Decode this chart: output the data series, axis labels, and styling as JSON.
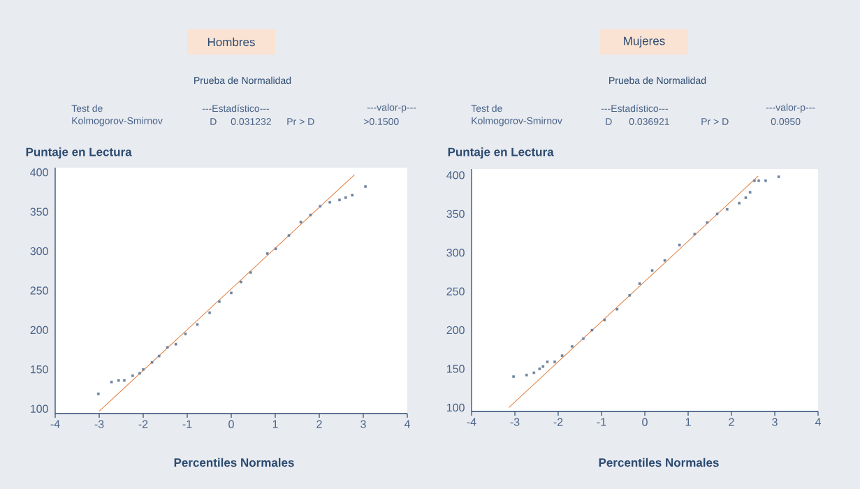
{
  "chart_data": [
    {
      "type": "scatter",
      "title": "Hombres",
      "subtitle": "Prueba de Normalidad",
      "xlabel": "Percentiles Normales",
      "ylabel": "Puntaje en Lectura",
      "annotations": [
        "Test de",
        "Kolmogorov-Smirnov",
        "---Estadístico---",
        "D",
        "0.031232",
        "Pr  >  D",
        "---valor-p---",
        ">0.1500"
      ],
      "xlim": [
        -4,
        4
      ],
      "ylim": [
        94,
        406
      ],
      "xticks": [
        -4,
        -3,
        -2,
        -1,
        0,
        1,
        2,
        3,
        4
      ],
      "yticks": [
        100,
        150,
        200,
        250,
        300,
        350,
        400
      ],
      "series": [
        {
          "color": "#6d83a0",
          "marker": "square",
          "x": [
            -3.02,
            -2.72,
            -2.56,
            -2.43,
            -2.24,
            -2.08,
            -2.0,
            -1.8,
            -1.64,
            -1.45,
            -1.26,
            -1.04,
            -0.77,
            -0.49,
            -0.27,
            0,
            0.22,
            0.44,
            0.82,
            1.01,
            1.31,
            1.58,
            1.8,
            2.02,
            2.24,
            2.46,
            2.6,
            2.75,
            3.05
          ],
          "values": [
            119,
            134,
            136,
            136,
            142,
            145,
            150,
            159,
            167,
            178,
            182,
            195,
            207,
            222,
            236,
            247,
            261,
            273,
            297,
            303,
            320,
            337,
            346,
            357,
            362,
            365,
            368,
            371,
            382
          ]
        },
        {
          "type": "line",
          "color": "#e07b39",
          "x": [
            -3,
            2.8
          ],
          "values": [
            97,
            397
          ]
        }
      ]
    },
    {
      "type": "scatter",
      "title": "Mujeres",
      "subtitle": "Prueba de Normalidad",
      "xlabel": "Percentiles Normales",
      "ylabel": "Puntaje en Lectura",
      "annotations": [
        "Test de",
        "Kolmogorov-Smirnov",
        "---Estadístico---",
        "D",
        "0.036921",
        "Pr > D",
        "---valor-p---",
        "0.0950"
      ],
      "xlim": [
        -4,
        4
      ],
      "ylim": [
        95,
        408
      ],
      "xticks": [
        -4,
        -3,
        -2,
        -1,
        0,
        1,
        2,
        3,
        4
      ],
      "yticks": [
        100,
        150,
        200,
        250,
        300,
        350,
        400
      ],
      "series": [
        {
          "color": "#6d83a0",
          "marker": "square",
          "x": [
            -3.03,
            -2.73,
            -2.56,
            -2.43,
            -2.35,
            -2.25,
            -2.08,
            -1.91,
            -1.68,
            -1.42,
            -1.22,
            -0.93,
            -0.64,
            -0.35,
            -0.12,
            0.17,
            0.46,
            0.8,
            1.15,
            1.44,
            1.67,
            1.9,
            2.18,
            2.33,
            2.43,
            2.53,
            2.63,
            2.79,
            3.09
          ],
          "values": [
            140,
            142,
            145,
            150,
            153,
            159,
            159,
            167,
            179,
            189,
            200,
            213,
            227,
            245,
            260,
            277,
            290,
            310,
            324,
            339,
            350,
            356,
            364,
            371,
            378,
            393,
            393,
            393,
            398
          ]
        },
        {
          "type": "line",
          "color": "#e07b39",
          "x": [
            -3.14,
            2.62
          ],
          "values": [
            100,
            399
          ]
        }
      ]
    }
  ]
}
